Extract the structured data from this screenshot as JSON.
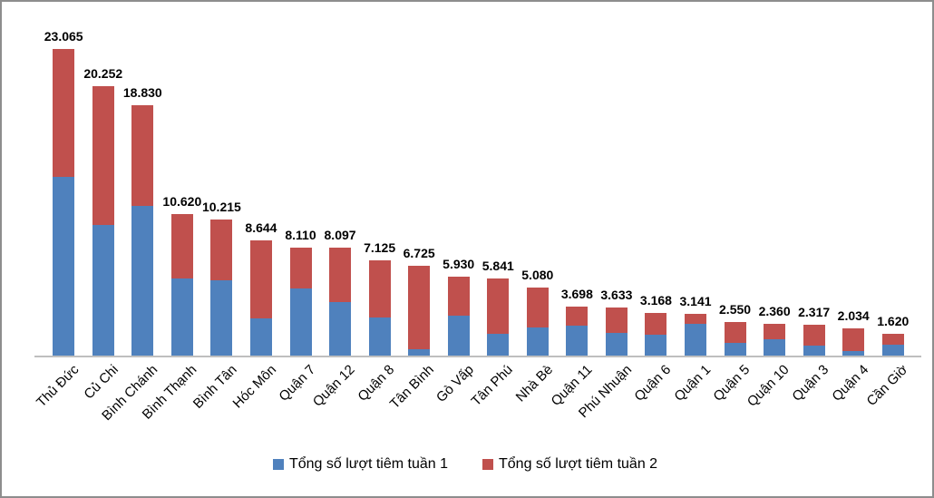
{
  "chart_data": {
    "type": "bar",
    "stacked": true,
    "title": "",
    "xlabel": "",
    "ylabel": "",
    "ylim": [
      0,
      23065
    ],
    "grid": false,
    "legend_position": "bottom",
    "categories": [
      "Thủ Đức",
      "Củ Chi",
      "Bình Chánh",
      "Bình Thạnh",
      "Bình Tân",
      "Hóc Môn",
      "Quận 7",
      "Quận 12",
      "Quận 8",
      "Tân Bình",
      "Gò Vấp",
      "Tân Phú",
      "Nhà Bè",
      "Quận 11",
      "Phú Nhuận",
      "Quận 6",
      "Quận 1",
      "Quận 5",
      "Quận 10",
      "Quận 3",
      "Quận 4",
      "Cần Giờ"
    ],
    "series": [
      {
        "name": "Tổng số lượt tiêm tuần 1",
        "color": "#4F81BD",
        "values": [
          13450,
          9800,
          11250,
          5800,
          5650,
          2800,
          5050,
          4000,
          2850,
          480,
          3000,
          1650,
          2100,
          2250,
          1700,
          1550,
          2400,
          950,
          1230,
          750,
          340,
          820
        ]
      },
      {
        "name": "Tổng số lượt tiêm tuần 2",
        "color": "#C0504D",
        "values": [
          9615,
          10452,
          7580,
          4820,
          4565,
          5844,
          3060,
          4097,
          4275,
          6245,
          2930,
          4191,
          2980,
          1448,
          1933,
          1618,
          741,
          1600,
          1130,
          1567,
          1694,
          800
        ]
      }
    ],
    "totals": [
      23065,
      20252,
      18830,
      10620,
      10215,
      8644,
      8110,
      8097,
      7125,
      6725,
      5930,
      5841,
      5080,
      3698,
      3633,
      3168,
      3141,
      2550,
      2360,
      2317,
      2034,
      1620
    ],
    "total_labels": [
      "23.065",
      "20.252",
      "18.830",
      "10.620",
      "10.215",
      "8.644",
      "8.110",
      "8.097",
      "7.125",
      "6.725",
      "5.930",
      "5.841",
      "5.080",
      "3.698",
      "3.633",
      "3.168",
      "3.141",
      "2.550",
      "2.360",
      "2.317",
      "2.034",
      "1.620"
    ]
  },
  "colors": {
    "week1": "#4F81BD",
    "week2": "#C0504D",
    "axis_line": "#BFBFBF",
    "label_text": "#000000",
    "frame_border": "#8D8D8D"
  }
}
